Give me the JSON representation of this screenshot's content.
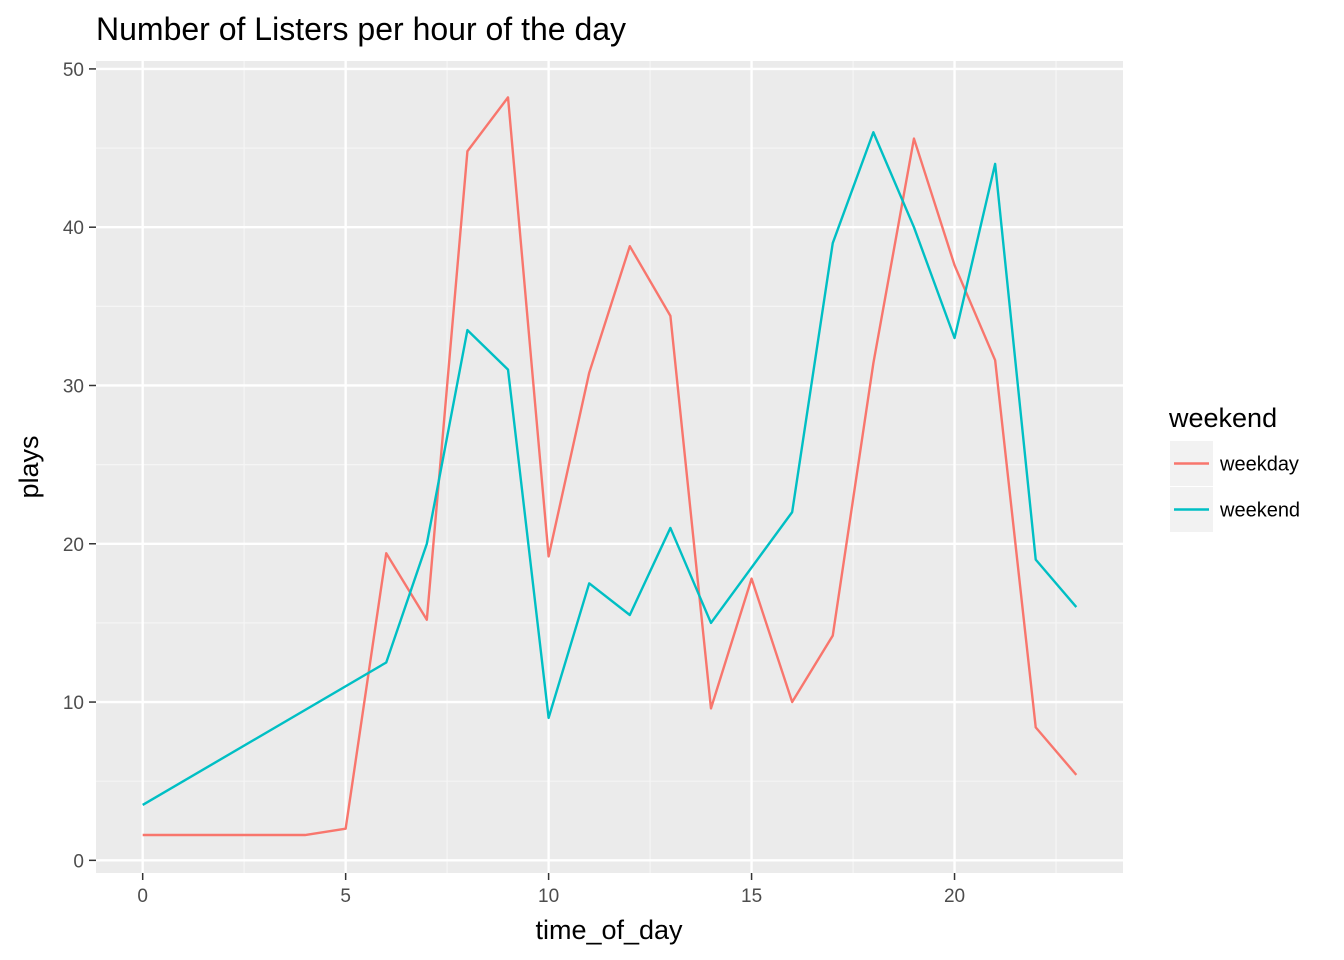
{
  "chart_data": {
    "type": "line",
    "title": "Number of Listers per hour of the day",
    "xlabel": "time_of_day",
    "ylabel": "plays",
    "xlim": [
      -1.15,
      24.15
    ],
    "ylim": [
      -0.8,
      50.5
    ],
    "x_ticks": [
      0,
      5,
      10,
      15,
      20
    ],
    "y_ticks": [
      0,
      10,
      20,
      30,
      40,
      50
    ],
    "grid": true,
    "legend_position": "right",
    "legend_title": "weekend",
    "series": [
      {
        "name": "weekday",
        "color": "#F8766D",
        "x": [
          0,
          4,
          5,
          6,
          7,
          8,
          9,
          10,
          11,
          12,
          13,
          14,
          15,
          16,
          17,
          18,
          19,
          20,
          21,
          22,
          23
        ],
        "y": [
          1.6,
          1.6,
          2.0,
          19.4,
          15.2,
          44.8,
          48.2,
          19.2,
          30.8,
          38.8,
          34.4,
          9.6,
          17.8,
          10.0,
          14.2,
          31.4,
          45.6,
          37.6,
          31.6,
          8.4,
          5.4
        ]
      },
      {
        "name": "weekend",
        "color": "#00BFC4",
        "x": [
          0,
          6,
          7,
          8,
          9,
          10,
          11,
          12,
          13,
          14,
          16,
          17,
          18,
          19,
          20,
          21,
          22,
          23
        ],
        "y": [
          3.5,
          12.5,
          20.0,
          33.5,
          31.0,
          9.0,
          17.5,
          15.5,
          21.0,
          15.0,
          22.0,
          39.0,
          46.0,
          40.0,
          33.0,
          44.0,
          19.0,
          16.0
        ]
      }
    ]
  }
}
